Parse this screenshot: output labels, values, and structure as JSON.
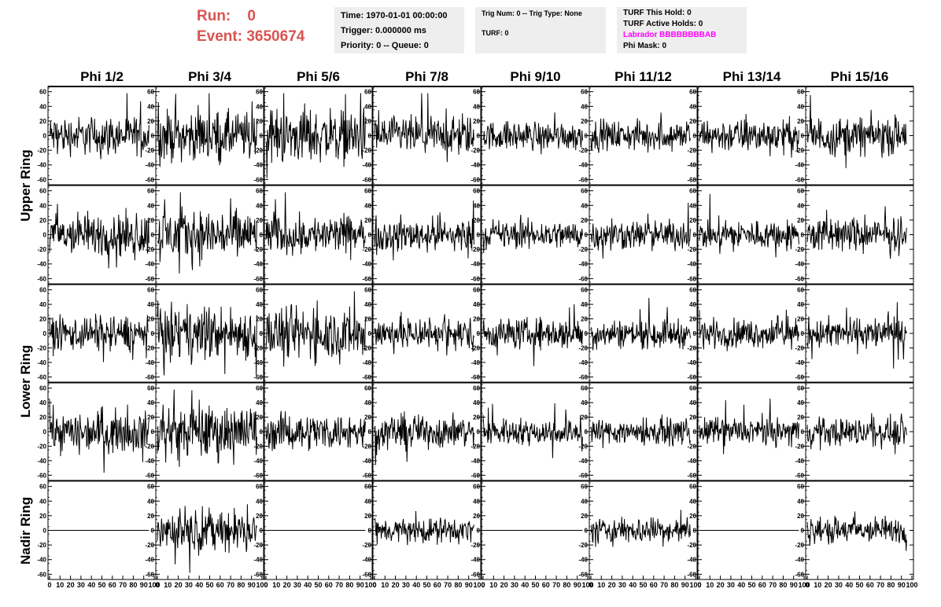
{
  "header": {
    "run_label": "Run:",
    "run_value": "0",
    "event_label": "Event:",
    "event_value": "3650674"
  },
  "info_panel_1": {
    "time": "Time: 1970-01-01 00:00:00",
    "trigger": "Trigger: 0.000000 ms",
    "priority": "Priority: 0 -- Queue: 0"
  },
  "info_panel_2": {
    "trig": "Trig Num: 0 -- Trig Type: None",
    "turf": "TURF: 0"
  },
  "info_panel_3": {
    "hold": "TURF This Hold: 0",
    "active": "TURF Active Holds: 0",
    "labrador": "Labrador BBBBBBBBAB",
    "mask": "Phi Mask: 0"
  },
  "colors": {
    "header_red": "#d9534f",
    "labrador_magenta": "#ff00ff",
    "panel_bg": "#eeeeee",
    "trace": "#000000"
  },
  "chart_data": {
    "type": "line",
    "columns": [
      "Phi 1/2",
      "Phi 3/4",
      "Phi 5/6",
      "Phi 7/8",
      "Phi 9/10",
      "Phi 11/12",
      "Phi 13/14",
      "Phi 15/16"
    ],
    "ring_labels": [
      "Upper Ring",
      "Lower Ring",
      "Nadir Ring"
    ],
    "rows": 5,
    "xlim": [
      0,
      100
    ],
    "ylim": [
      -65,
      65
    ],
    "xticks": [
      0,
      10,
      20,
      30,
      40,
      50,
      60,
      70,
      80,
      90,
      100
    ],
    "xtick_labels": [
      "0",
      "10",
      "20",
      "30",
      "40",
      "50",
      "60",
      "70",
      "80",
      "90",
      "100"
    ],
    "yticks": [
      -60,
      -40,
      -20,
      0,
      20,
      40,
      60
    ],
    "ytick_labels": [
      "-60",
      "-40",
      "-20",
      "0",
      "20",
      "40",
      "60"
    ],
    "waveform_x_range": [
      0,
      95
    ],
    "trace_amplitude": [
      [
        16,
        20,
        22,
        16,
        12,
        12,
        14,
        16
      ],
      [
        18,
        22,
        16,
        14,
        12,
        12,
        12,
        14
      ],
      [
        15,
        22,
        22,
        14,
        13,
        12,
        12,
        13
      ],
      [
        17,
        22,
        15,
        14,
        11,
        11,
        11,
        12
      ],
      [
        0,
        17,
        0,
        10,
        0,
        11,
        0,
        11
      ]
    ],
    "grid": false,
    "legend": "none"
  }
}
